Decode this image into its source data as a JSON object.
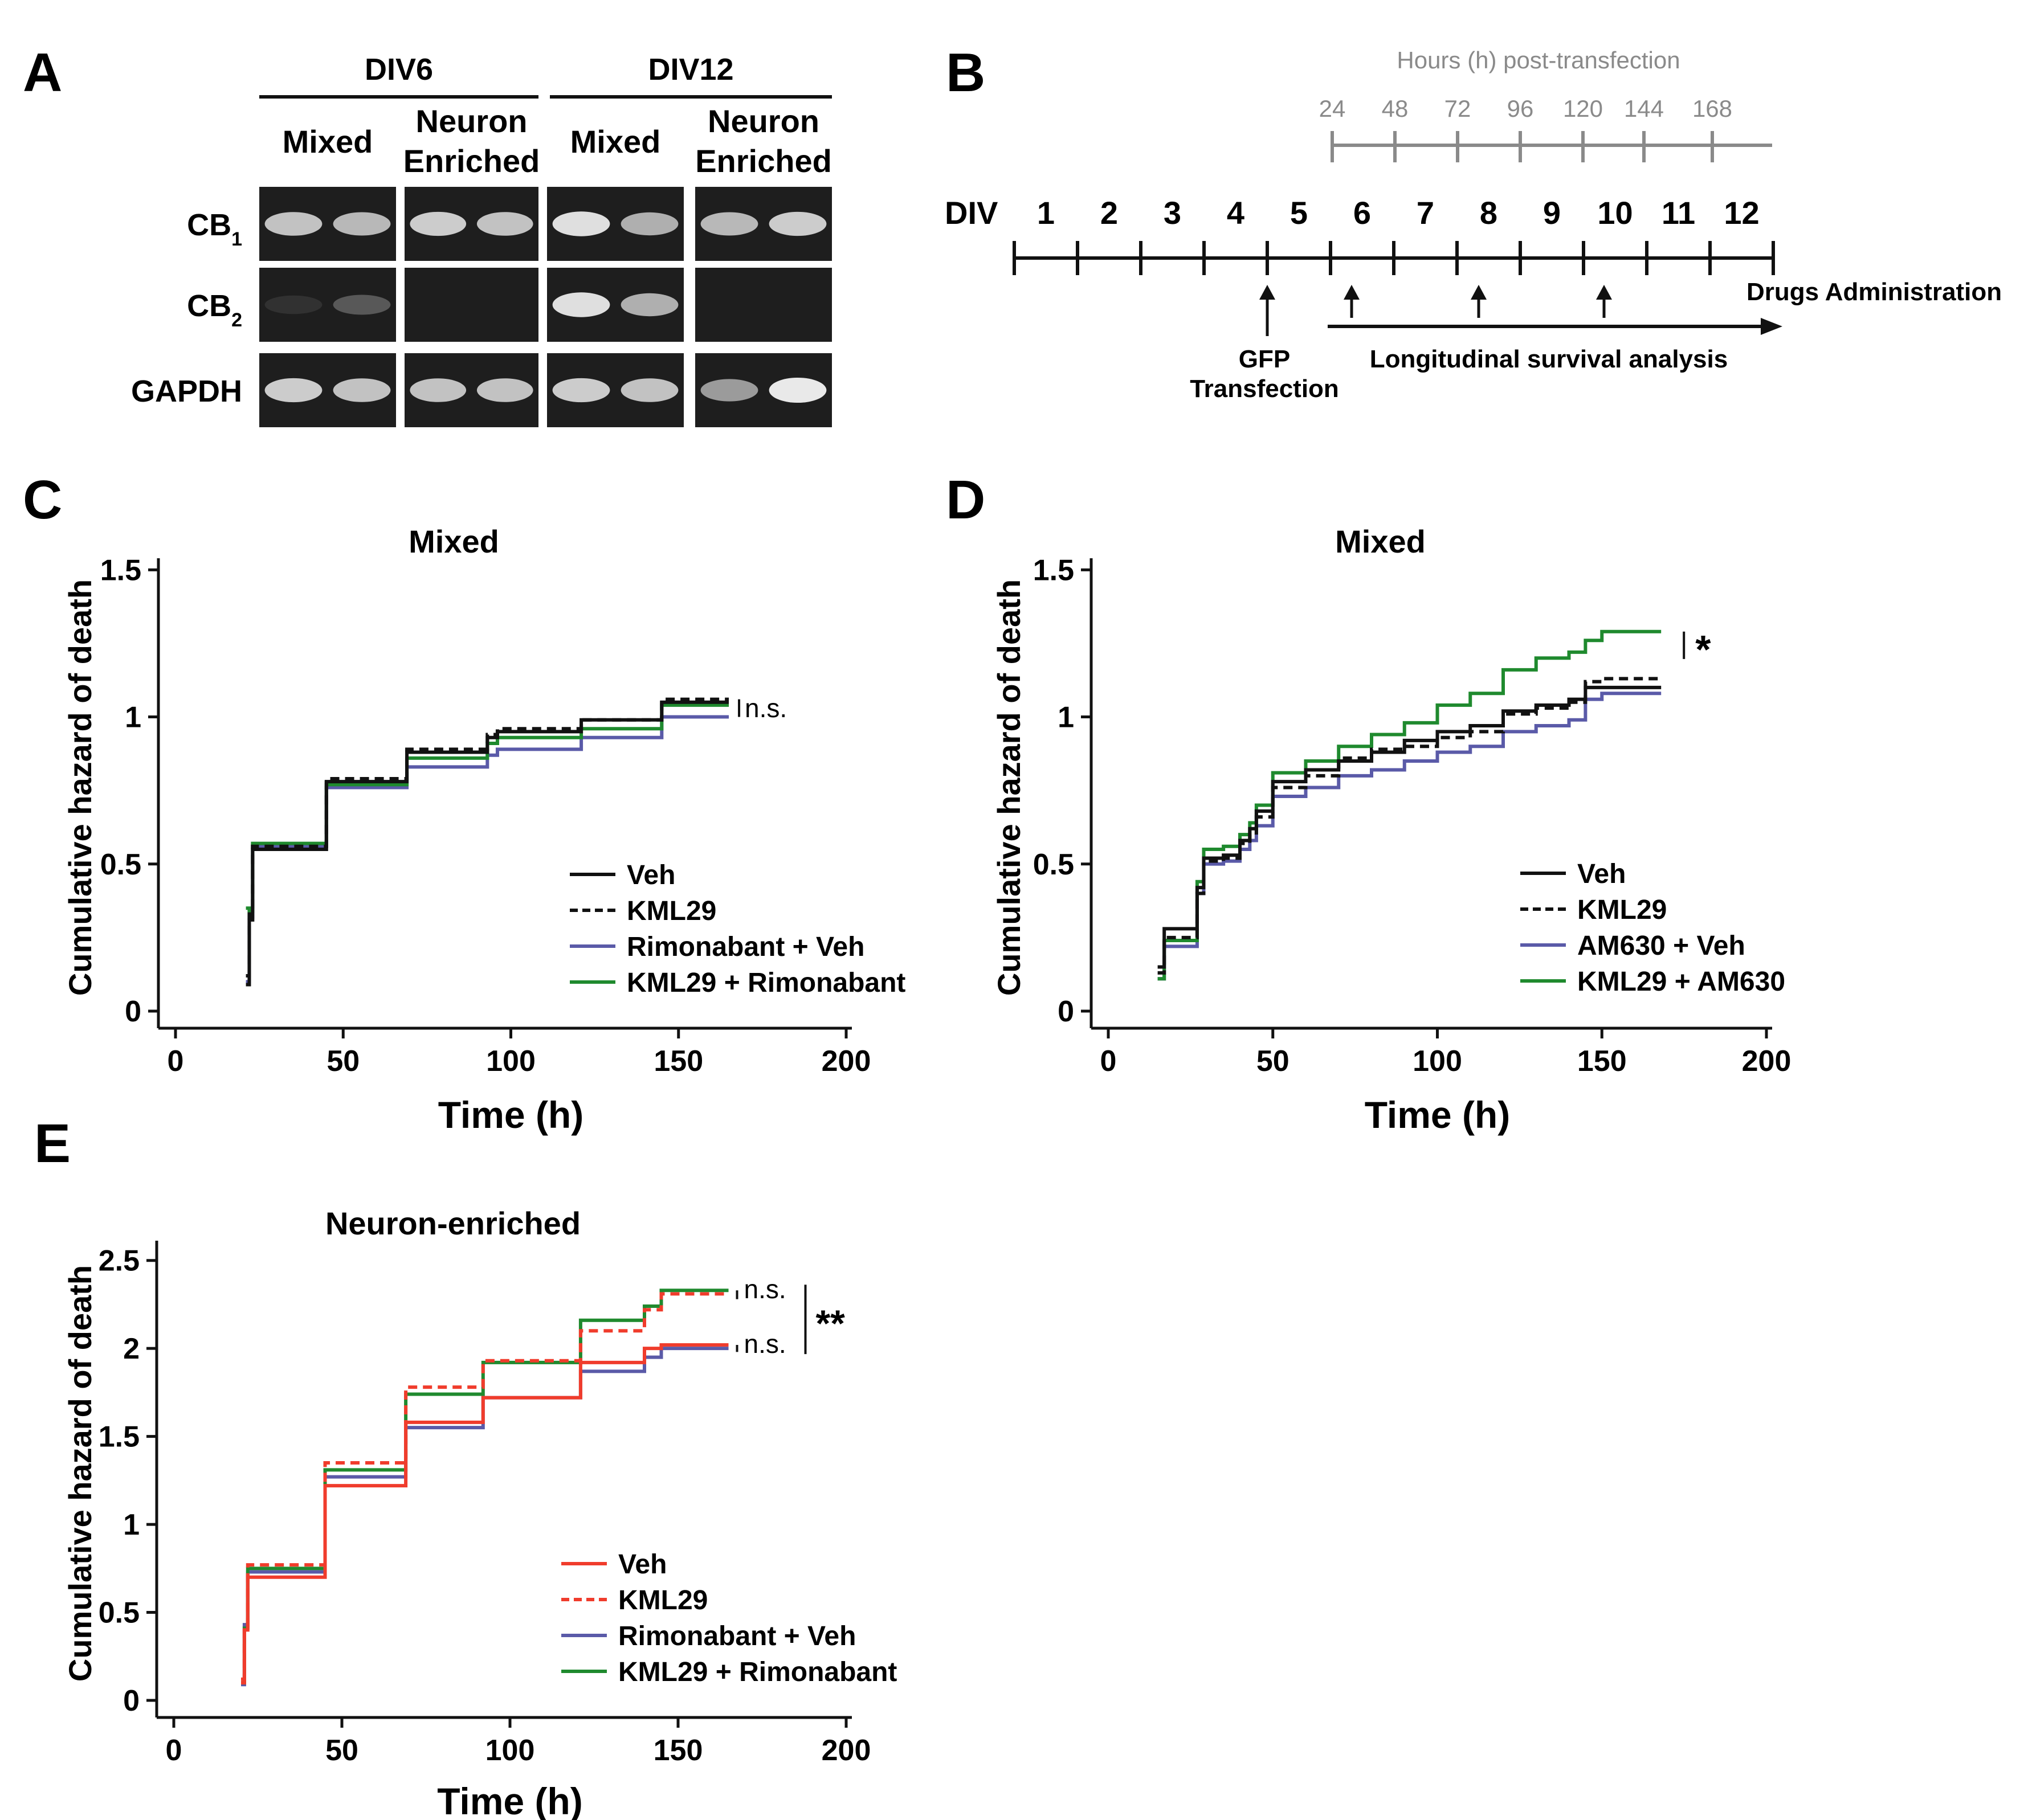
{
  "panels": {
    "A": {
      "letter": "A",
      "groups": [
        "DIV6",
        "DIV12"
      ],
      "conditions": [
        "Mixed",
        "Neuron Enriched",
        "Mixed",
        "Neuron Enriched"
      ],
      "rows": [
        {
          "label": "CB",
          "subscript": "1",
          "band_intensity": [
            0.8,
            0.75,
            0.85,
            0.8,
            0.95,
            0.7,
            0.75,
            0.85
          ]
        },
        {
          "label": "CB",
          "subscript": "2",
          "band_intensity": [
            0.05,
            0.25,
            0.0,
            0.0,
            0.95,
            0.7,
            0.0,
            0.0
          ]
        },
        {
          "label": "GAPDH",
          "subscript": "",
          "band_intensity": [
            0.85,
            0.8,
            0.8,
            0.8,
            0.85,
            0.8,
            0.6,
            1.0
          ]
        }
      ]
    },
    "B": {
      "letter": "B",
      "hours_title": "Hours (h) post-transfection",
      "hours": [
        "24",
        "48",
        "72",
        "96",
        "120",
        "144",
        "168"
      ],
      "div_label": "DIV",
      "div_days": [
        "1",
        "2",
        "3",
        "4",
        "5",
        "6",
        "7",
        "8",
        "9",
        "10",
        "11",
        "12"
      ],
      "drugs_label": "Drugs Administration",
      "transfection_label_1": "GFP",
      "transfection_label_2": "Transfection",
      "survival_label": "Longitudinal survival analysis",
      "drug_days": [
        6,
        8,
        10
      ],
      "transfection_day": 5
    },
    "C": {
      "letter": "C"
    },
    "D": {
      "letter": "D"
    },
    "E": {
      "letter": "E"
    }
  },
  "colors": {
    "veh_black": "#111111",
    "blue": "#5a5aa8",
    "green": "#1f8a2e",
    "red": "#f03c2c",
    "gray": "#8a8a8a"
  },
  "chart_data": [
    {
      "id": "C",
      "type": "line",
      "step": true,
      "title": "Mixed",
      "xlabel": "Time (h)",
      "ylabel": "Cumulative hazard of death",
      "xlim": [
        0,
        200
      ],
      "ylim": [
        0,
        1.5
      ],
      "xticks": [
        "0",
        "50",
        "100",
        "150",
        "200"
      ],
      "yticks": [
        "0",
        "0.5",
        "1",
        "1.5"
      ],
      "xtick_values": [
        0,
        50,
        100,
        150,
        200
      ],
      "ytick_values": [
        0,
        0.5,
        1,
        1.5
      ],
      "series": [
        {
          "name": "Veh",
          "color": "#111111",
          "dashed": false,
          "x": [
            21,
            22,
            23,
            45,
            69,
            93,
            96,
            121,
            145,
            165
          ],
          "y": [
            0.09,
            0.31,
            0.55,
            0.78,
            0.88,
            0.93,
            0.95,
            0.99,
            1.05,
            1.05
          ]
        },
        {
          "name": "KML29",
          "color": "#111111",
          "dashed": true,
          "x": [
            21,
            22,
            23,
            45,
            69,
            93,
            96,
            121,
            145,
            165
          ],
          "y": [
            0.12,
            0.33,
            0.56,
            0.79,
            0.89,
            0.94,
            0.96,
            0.99,
            1.06,
            1.06
          ]
        },
        {
          "name": "Rimonabant + Veh",
          "color": "#5a5aa8",
          "dashed": false,
          "x": [
            21,
            22,
            23,
            45,
            69,
            93,
            96,
            121,
            145,
            165
          ],
          "y": [
            0.1,
            0.32,
            0.56,
            0.76,
            0.83,
            0.87,
            0.89,
            0.93,
            1.0,
            1.0
          ]
        },
        {
          "name": "KML29 + Rimonabant",
          "color": "#1f8a2e",
          "dashed": false,
          "x": [
            21,
            22,
            23,
            45,
            69,
            93,
            96,
            121,
            145,
            165
          ],
          "y": [
            0.35,
            0.34,
            0.57,
            0.77,
            0.86,
            0.91,
            0.93,
            0.96,
            1.04,
            1.04
          ]
        }
      ],
      "annotations": [
        {
          "text": "n.s.",
          "y_from": 1.0,
          "y_to": 1.06
        }
      ]
    },
    {
      "id": "D",
      "type": "line",
      "step": true,
      "title": "Mixed",
      "xlabel": "Time (h)",
      "ylabel": "Cumulative hazard of death",
      "xlim": [
        0,
        200
      ],
      "ylim": [
        0,
        1.5
      ],
      "xticks": [
        "0",
        "50",
        "100",
        "150",
        "200"
      ],
      "yticks": [
        "0",
        "0.5",
        "1",
        "1.5"
      ],
      "xtick_values": [
        0,
        50,
        100,
        150,
        200
      ],
      "ytick_values": [
        0,
        0.5,
        1,
        1.5
      ],
      "series": [
        {
          "name": "Veh",
          "color": "#111111",
          "dashed": false,
          "x": [
            15,
            17,
            27,
            29,
            35,
            40,
            43,
            45,
            50,
            60,
            70,
            80,
            90,
            100,
            110,
            120,
            130,
            140,
            145,
            150,
            168
          ],
          "y": [
            0.15,
            0.28,
            0.42,
            0.52,
            0.53,
            0.58,
            0.62,
            0.68,
            0.78,
            0.82,
            0.85,
            0.88,
            0.92,
            0.95,
            0.97,
            1.02,
            1.04,
            1.06,
            1.1,
            1.1,
            1.1
          ]
        },
        {
          "name": "KML29",
          "color": "#111111",
          "dashed": true,
          "x": [
            15,
            17,
            27,
            29,
            35,
            40,
            43,
            45,
            50,
            60,
            70,
            80,
            90,
            100,
            110,
            120,
            130,
            140,
            145,
            150,
            168
          ],
          "y": [
            0.13,
            0.25,
            0.4,
            0.51,
            0.52,
            0.57,
            0.6,
            0.66,
            0.76,
            0.8,
            0.86,
            0.89,
            0.9,
            0.93,
            0.95,
            1.01,
            1.03,
            1.05,
            1.12,
            1.13,
            1.13
          ]
        },
        {
          "name": "AM630 + Veh",
          "color": "#5a5aa8",
          "dashed": false,
          "x": [
            15,
            17,
            27,
            29,
            35,
            40,
            43,
            45,
            50,
            60,
            70,
            80,
            90,
            100,
            110,
            120,
            130,
            140,
            145,
            150,
            168
          ],
          "y": [
            0.11,
            0.22,
            0.4,
            0.5,
            0.51,
            0.55,
            0.58,
            0.63,
            0.73,
            0.76,
            0.8,
            0.82,
            0.85,
            0.88,
            0.9,
            0.95,
            0.97,
            0.99,
            1.06,
            1.08,
            1.08
          ]
        },
        {
          "name": "KML29 + AM630",
          "color": "#1f8a2e",
          "dashed": false,
          "x": [
            15,
            17,
            27,
            29,
            35,
            40,
            43,
            45,
            50,
            60,
            70,
            80,
            90,
            100,
            110,
            120,
            130,
            140,
            145,
            150,
            168
          ],
          "y": [
            0.11,
            0.24,
            0.44,
            0.55,
            0.56,
            0.6,
            0.64,
            0.7,
            0.81,
            0.85,
            0.9,
            0.94,
            0.98,
            1.04,
            1.08,
            1.16,
            1.2,
            1.22,
            1.26,
            1.29,
            1.29
          ]
        }
      ],
      "annotations": [
        {
          "text": "*",
          "y_from": 1.1,
          "y_to": 1.29
        }
      ]
    },
    {
      "id": "E",
      "type": "line",
      "step": true,
      "title": "Neuron-enriched",
      "xlabel": "Time (h)",
      "ylabel": "Cumulative hazard of death",
      "xlim": [
        0,
        200
      ],
      "ylim": [
        0,
        2.5
      ],
      "xticks": [
        "0",
        "50",
        "100",
        "150",
        "200"
      ],
      "yticks": [
        "0",
        "0.5",
        "1",
        "1.5",
        "2",
        "2.5"
      ],
      "xtick_values": [
        0,
        50,
        100,
        150,
        200
      ],
      "ytick_values": [
        0,
        0.5,
        1,
        1.5,
        2,
        2.5
      ],
      "series": [
        {
          "name": "Veh",
          "color": "#f03c2c",
          "dashed": false,
          "x": [
            20,
            21,
            22,
            44,
            45,
            68,
            69,
            92,
            120,
            121,
            140,
            145,
            165
          ],
          "y": [
            0.1,
            0.4,
            0.7,
            0.7,
            1.22,
            1.22,
            1.58,
            1.72,
            1.72,
            1.92,
            2.0,
            2.02,
            2.02
          ]
        },
        {
          "name": "KML29",
          "color": "#f03c2c",
          "dashed": true,
          "x": [
            20,
            21,
            22,
            44,
            45,
            68,
            69,
            92,
            120,
            121,
            140,
            145,
            165
          ],
          "y": [
            0.12,
            0.42,
            0.77,
            0.77,
            1.35,
            1.35,
            1.78,
            1.93,
            1.93,
            2.1,
            2.22,
            2.31,
            2.31
          ]
        },
        {
          "name": "Rimonabant + Veh",
          "color": "#5a5aa8",
          "dashed": false,
          "x": [
            20,
            21,
            22,
            44,
            45,
            68,
            69,
            92,
            120,
            121,
            140,
            145,
            165
          ],
          "y": [
            0.09,
            0.43,
            0.73,
            0.73,
            1.27,
            1.27,
            1.55,
            1.72,
            1.72,
            1.87,
            1.95,
            2.0,
            2.0
          ]
        },
        {
          "name": "KML29 + Rimonabant",
          "color": "#1f8a2e",
          "dashed": false,
          "x": [
            20,
            21,
            22,
            44,
            45,
            68,
            69,
            92,
            120,
            121,
            140,
            145,
            165
          ],
          "y": [
            0.1,
            0.41,
            0.75,
            0.75,
            1.31,
            1.31,
            1.74,
            1.92,
            1.92,
            2.16,
            2.24,
            2.33,
            2.33
          ]
        }
      ],
      "annotations": [
        {
          "text": "n.s.",
          "y_from": 2.28,
          "y_to": 2.33
        },
        {
          "text": "n.s.",
          "y_from": 1.98,
          "y_to": 2.02
        },
        {
          "text": "**",
          "y_from": 2.0,
          "y_to": 2.33
        }
      ]
    }
  ]
}
